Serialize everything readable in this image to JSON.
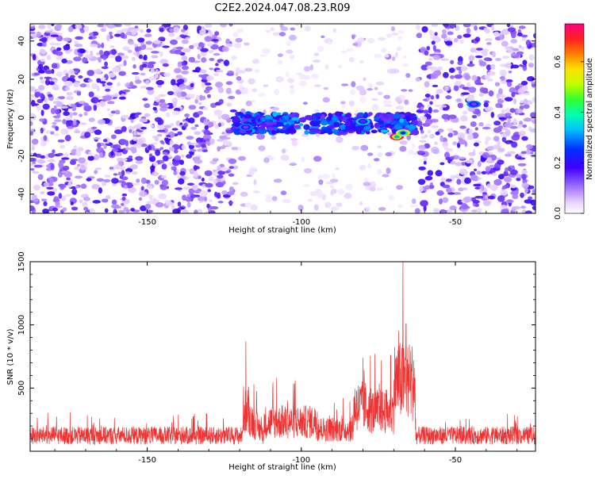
{
  "title": "C2E2.2024.047.08.23.R09",
  "chart_data": [
    {
      "type": "heatmap",
      "xlabel": "Height of straight line (km)",
      "ylabel": "Frequency (Hz)",
      "xlim": [
        -188,
        -24
      ],
      "ylim": [
        -50,
        49
      ],
      "xticks": [
        -150,
        -100,
        -50
      ],
      "yticks": [
        -40,
        -20,
        0,
        20,
        40
      ],
      "colorbar": {
        "label": "Normalized spectral amplitude",
        "range": [
          0,
          0.75
        ],
        "ticks": [
          0.0,
          0.2,
          0.4,
          0.6
        ]
      },
      "description_regions": {
        "dense_noise_x_ranges": [
          [
            -188,
            -122
          ],
          [
            -62,
            -24
          ]
        ],
        "signal_band": {
          "x_range": [
            -122,
            -63
          ],
          "freq_center": -3,
          "freq_halfwidth": 5
        },
        "peak_points": [
          {
            "x": -69,
            "freq": -10,
            "amplitude": 0.72
          },
          {
            "x": -67,
            "freq": -8,
            "amplitude": 0.55
          },
          {
            "x": -80,
            "freq": -2,
            "amplitude": 0.35
          },
          {
            "x": -118,
            "freq": -5,
            "amplitude": 0.3
          },
          {
            "x": -44,
            "freq": 7,
            "amplitude": 0.3
          }
        ]
      }
    },
    {
      "type": "line",
      "xlabel": "Height of straight line (km)",
      "ylabel": "SNR (10 * v/v)",
      "xlim": [
        -188,
        -24
      ],
      "ylim": [
        0,
        1500
      ],
      "xticks": [
        -150,
        -100,
        -50
      ],
      "yticks": [
        500,
        1000,
        1500
      ],
      "color": "#ee3333",
      "baseline": 150,
      "peaks": [
        {
          "x": -67,
          "y": 1500
        },
        {
          "x": -66,
          "y": 1010
        },
        {
          "x": -118,
          "y": 870
        },
        {
          "x": -71,
          "y": 760
        },
        {
          "x": -80,
          "y": 740
        },
        {
          "x": -108,
          "y": 580
        },
        {
          "x": -102,
          "y": 560
        },
        {
          "x": -74,
          "y": 720
        }
      ]
    }
  ]
}
